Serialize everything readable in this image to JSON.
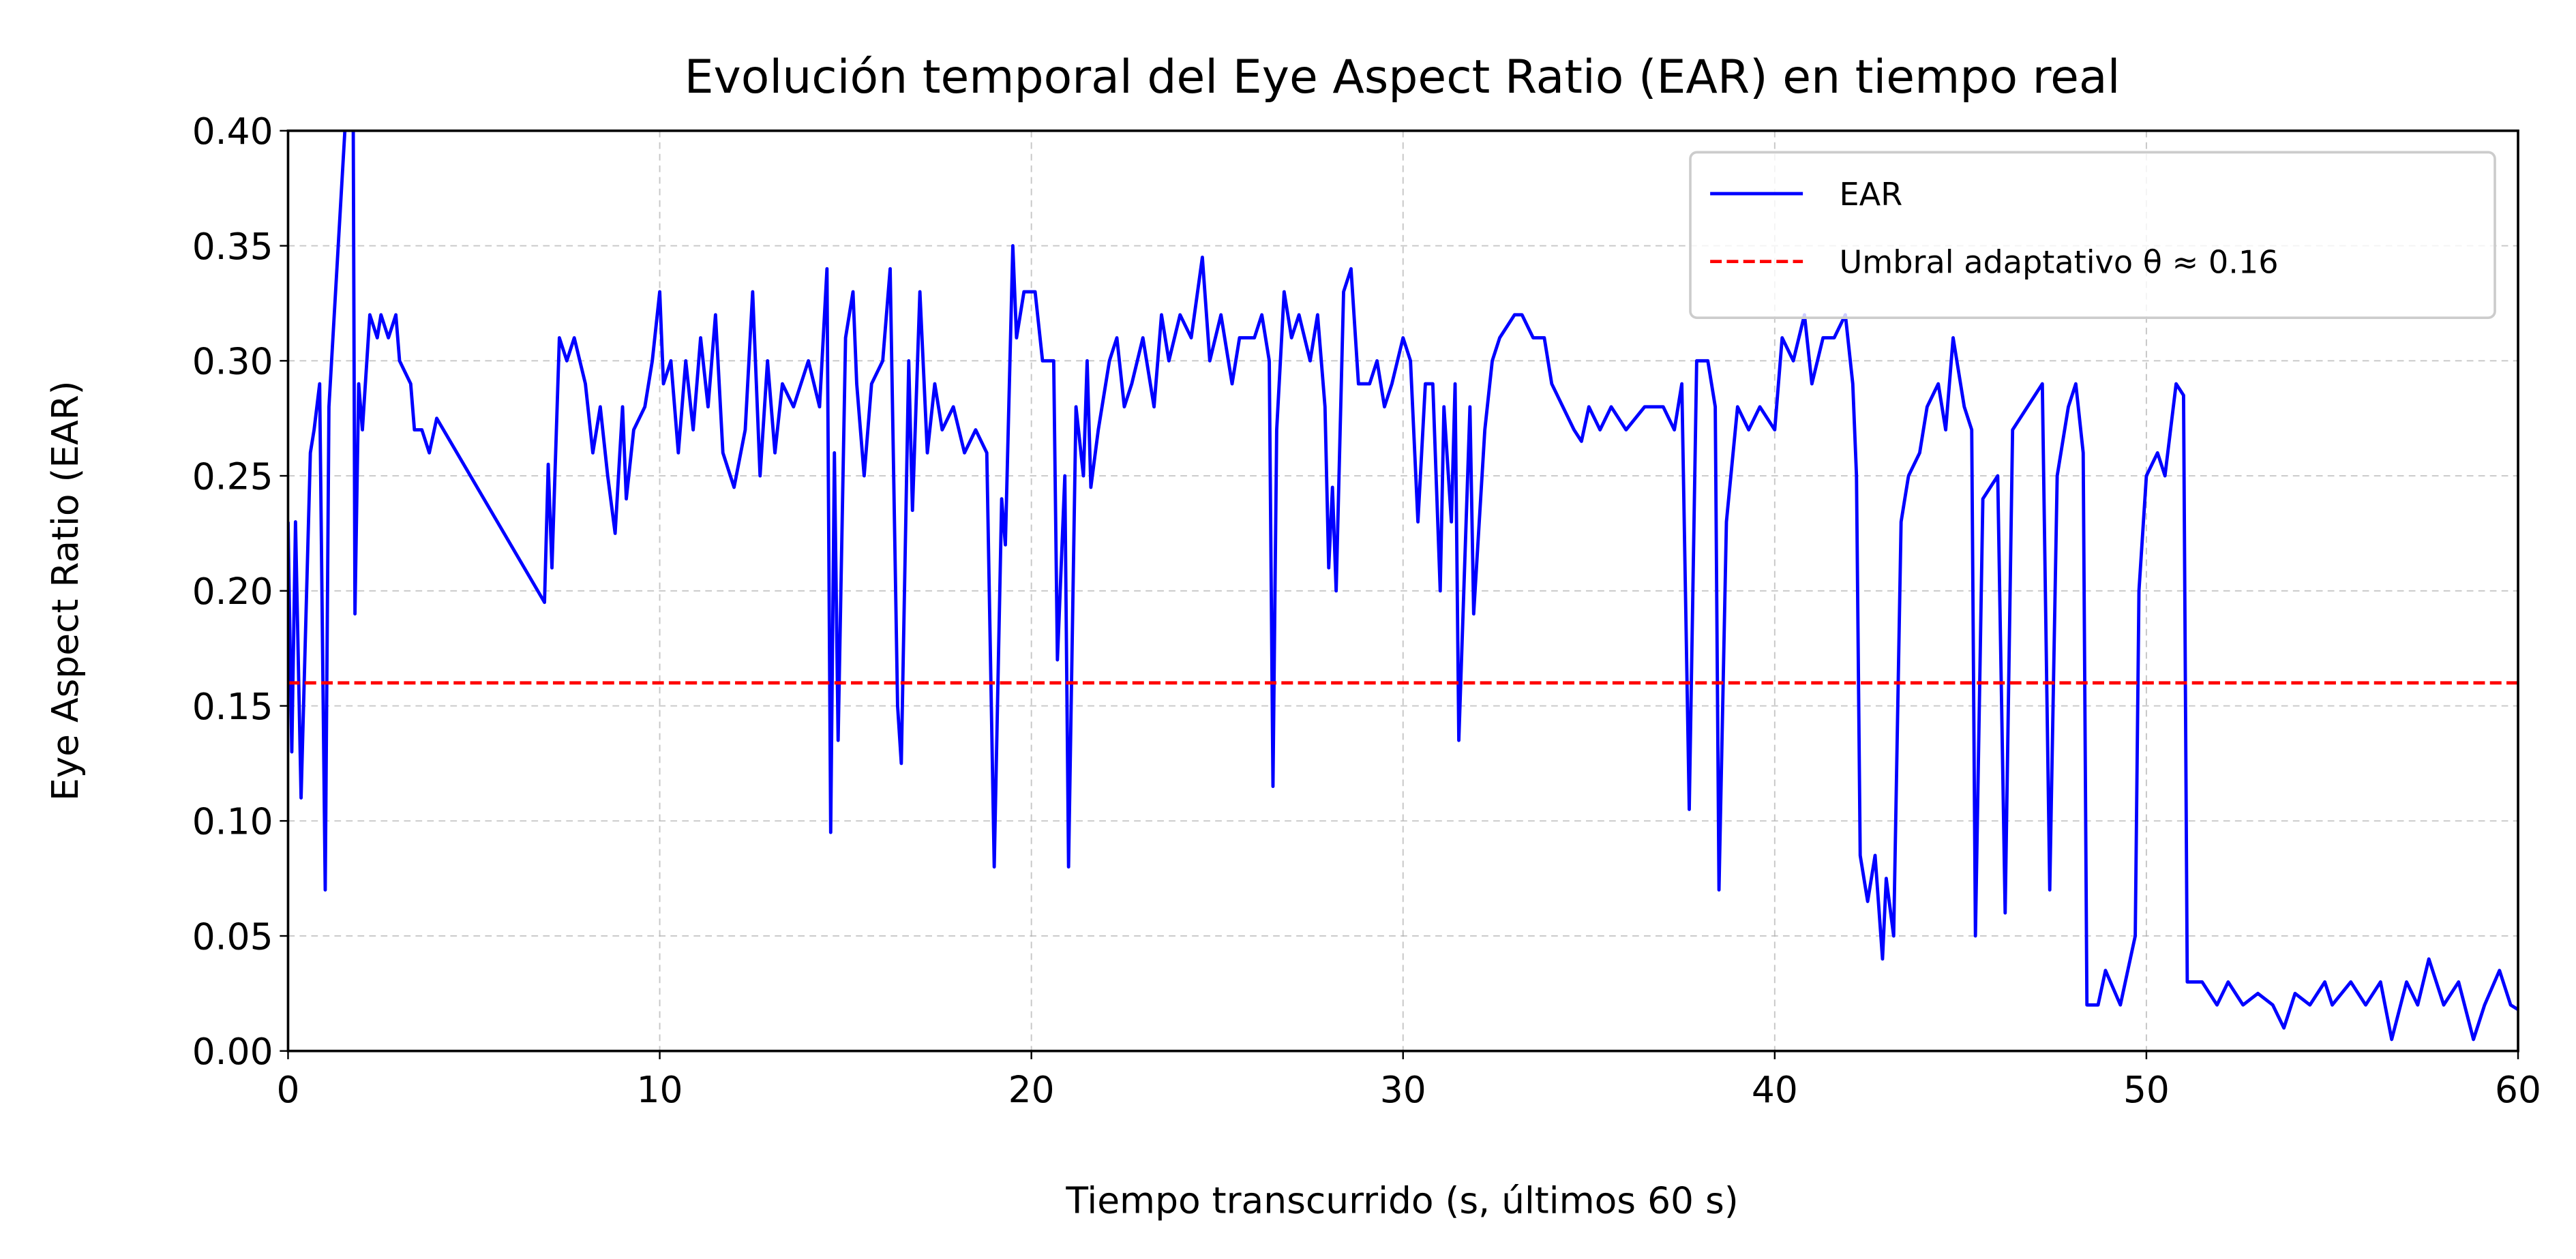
{
  "chart_data": {
    "type": "line",
    "title": "Evolución temporal del Eye Aspect Ratio (EAR) en tiempo real",
    "x_label": "Tiempo transcurrido (s, últimos 60 s)",
    "y_label": "Eye Aspect Ratio (EAR)",
    "x": [
      0,
      0.1,
      0.2,
      0.35,
      0.6,
      0.7,
      0.85,
      1.0,
      1.1,
      1.6,
      1.75,
      1.8,
      1.9,
      2.0,
      2.2,
      2.4,
      2.5,
      2.7,
      2.9,
      3.0,
      3.3,
      3.4,
      3.6,
      3.8,
      4.0,
      6.9,
      7.0,
      7.1,
      7.3,
      7.5,
      7.7,
      8.0,
      8.2,
      8.4,
      8.6,
      8.8,
      9.0,
      9.1,
      9.3,
      9.6,
      9.8,
      10.0,
      10.1,
      10.3,
      10.5,
      10.7,
      10.9,
      11.1,
      11.3,
      11.5,
      11.7,
      12.0,
      12.3,
      12.5,
      12.7,
      12.9,
      13.1,
      13.3,
      13.6,
      14.0,
      14.3,
      14.5,
      14.6,
      14.7,
      14.8,
      15.0,
      15.2,
      15.3,
      15.5,
      15.7,
      16.0,
      16.2,
      16.4,
      16.5,
      16.7,
      16.8,
      17.0,
      17.2,
      17.4,
      17.6,
      17.9,
      18.2,
      18.5,
      18.8,
      19.0,
      19.2,
      19.3,
      19.5,
      19.6,
      19.8,
      20.1,
      20.3,
      20.6,
      20.7,
      20.9,
      21.0,
      21.2,
      21.4,
      21.5,
      21.6,
      21.8,
      22.1,
      22.3,
      22.5,
      22.7,
      23.0,
      23.3,
      23.5,
      23.7,
      24.0,
      24.3,
      24.6,
      24.8,
      25.1,
      25.4,
      25.6,
      26.0,
      26.2,
      26.4,
      26.5,
      26.6,
      26.8,
      27.0,
      27.2,
      27.5,
      27.7,
      27.9,
      28.0,
      28.1,
      28.2,
      28.4,
      28.6,
      28.8,
      29.1,
      29.3,
      29.5,
      29.7,
      30.0,
      30.2,
      30.4,
      30.6,
      30.8,
      31.0,
      31.1,
      31.3,
      31.4,
      31.5,
      31.8,
      31.9,
      32.2,
      32.4,
      32.6,
      33.0,
      33.2,
      33.5,
      33.8,
      34.0,
      34.6,
      34.8,
      35.0,
      35.3,
      35.6,
      36.0,
      36.5,
      37.0,
      37.3,
      37.5,
      37.7,
      37.9,
      38.2,
      38.4,
      38.5,
      38.7,
      39.0,
      39.3,
      39.6,
      40.0,
      40.2,
      40.5,
      40.8,
      41.0,
      41.3,
      41.6,
      41.9,
      42.1,
      42.2,
      42.3,
      42.5,
      42.7,
      42.9,
      43.0,
      43.2,
      43.4,
      43.6,
      43.9,
      44.1,
      44.4,
      44.6,
      44.8,
      45.1,
      45.3,
      45.4,
      45.6,
      46.0,
      46.2,
      46.4,
      46.8,
      47.2,
      47.4,
      47.6,
      47.9,
      48.1,
      48.3,
      48.4,
      48.7,
      48.9,
      49.3,
      49.5,
      49.7,
      49.8,
      50.0,
      50.3,
      50.5,
      50.8,
      51.0,
      51.1,
      51.5,
      51.9,
      52.2,
      52.6,
      53.0,
      53.4,
      53.7,
      54.0,
      54.4,
      54.8,
      55.0,
      55.5,
      55.9,
      56.3,
      56.6,
      57.0,
      57.3,
      57.6,
      58.0,
      58.4,
      58.8,
      59.1,
      59.5,
      59.8,
      60
    ],
    "series": [
      {
        "name": "EAR",
        "color": "#0000ff",
        "values": [
          0.23,
          0.13,
          0.23,
          0.11,
          0.26,
          0.27,
          0.29,
          0.07,
          0.28,
          0.42,
          0.42,
          0.19,
          0.29,
          0.27,
          0.32,
          0.31,
          0.32,
          0.31,
          0.32,
          0.3,
          0.29,
          0.27,
          0.27,
          0.26,
          0.275,
          0.195,
          0.255,
          0.21,
          0.31,
          0.3,
          0.31,
          0.29,
          0.26,
          0.28,
          0.25,
          0.225,
          0.28,
          0.24,
          0.27,
          0.28,
          0.3,
          0.33,
          0.29,
          0.3,
          0.26,
          0.3,
          0.27,
          0.31,
          0.28,
          0.32,
          0.26,
          0.245,
          0.27,
          0.33,
          0.25,
          0.3,
          0.26,
          0.29,
          0.28,
          0.3,
          0.28,
          0.34,
          0.095,
          0.26,
          0.135,
          0.31,
          0.33,
          0.29,
          0.25,
          0.29,
          0.3,
          0.34,
          0.15,
          0.125,
          0.3,
          0.235,
          0.33,
          0.26,
          0.29,
          0.27,
          0.28,
          0.26,
          0.27,
          0.26,
          0.08,
          0.24,
          0.22,
          0.35,
          0.31,
          0.33,
          0.33,
          0.3,
          0.3,
          0.17,
          0.25,
          0.08,
          0.28,
          0.25,
          0.3,
          0.245,
          0.27,
          0.3,
          0.31,
          0.28,
          0.29,
          0.31,
          0.28,
          0.32,
          0.3,
          0.32,
          0.31,
          0.345,
          0.3,
          0.32,
          0.29,
          0.31,
          0.31,
          0.32,
          0.3,
          0.115,
          0.27,
          0.33,
          0.31,
          0.32,
          0.3,
          0.32,
          0.28,
          0.21,
          0.245,
          0.2,
          0.33,
          0.34,
          0.29,
          0.29,
          0.3,
          0.28,
          0.29,
          0.31,
          0.3,
          0.23,
          0.29,
          0.29,
          0.2,
          0.28,
          0.23,
          0.29,
          0.135,
          0.28,
          0.19,
          0.27,
          0.3,
          0.31,
          0.32,
          0.32,
          0.31,
          0.31,
          0.29,
          0.27,
          0.265,
          0.28,
          0.27,
          0.28,
          0.27,
          0.28,
          0.28,
          0.27,
          0.29,
          0.105,
          0.3,
          0.3,
          0.28,
          0.07,
          0.23,
          0.28,
          0.27,
          0.28,
          0.27,
          0.31,
          0.3,
          0.32,
          0.29,
          0.31,
          0.31,
          0.32,
          0.29,
          0.25,
          0.085,
          0.065,
          0.085,
          0.04,
          0.075,
          0.05,
          0.23,
          0.25,
          0.26,
          0.28,
          0.29,
          0.27,
          0.31,
          0.28,
          0.27,
          0.05,
          0.24,
          0.25,
          0.06,
          0.27,
          0.28,
          0.29,
          0.07,
          0.25,
          0.28,
          0.29,
          0.26,
          0.02,
          0.02,
          0.035,
          0.02,
          0.035,
          0.05,
          0.2,
          0.25,
          0.26,
          0.25,
          0.29,
          0.285,
          0.03,
          0.03,
          0.02,
          0.03,
          0.02,
          0.025,
          0.02,
          0.01,
          0.025,
          0.02,
          0.03,
          0.02,
          0.03,
          0.02,
          0.03,
          0.005,
          0.03,
          0.02,
          0.04,
          0.02,
          0.03,
          0.005,
          0.02,
          0.035,
          0.02,
          0.018
        ]
      }
    ],
    "threshold": {
      "name": "Umbral adaptativo θ ≈ 0.16",
      "value": 0.16,
      "color": "#ff0000"
    },
    "xlim": [
      0,
      60
    ],
    "xticks": [
      0,
      10,
      20,
      30,
      40,
      50,
      60
    ],
    "ylim": [
      0,
      0.4
    ],
    "yticks": [
      {
        "value": 0,
        "label": "0.00"
      },
      {
        "value": 0.05,
        "label": "0.05"
      },
      {
        "value": 0.1,
        "label": "0.10"
      },
      {
        "value": 0.15,
        "label": "0.15"
      },
      {
        "value": 0.2,
        "label": "0.20"
      },
      {
        "value": 0.25,
        "label": "0.25"
      },
      {
        "value": 0.3,
        "label": "0.30"
      },
      {
        "value": 0.35,
        "label": "0.35"
      },
      {
        "value": 0.4,
        "label": "0.40"
      }
    ],
    "grid": true,
    "legend": "upper right"
  }
}
